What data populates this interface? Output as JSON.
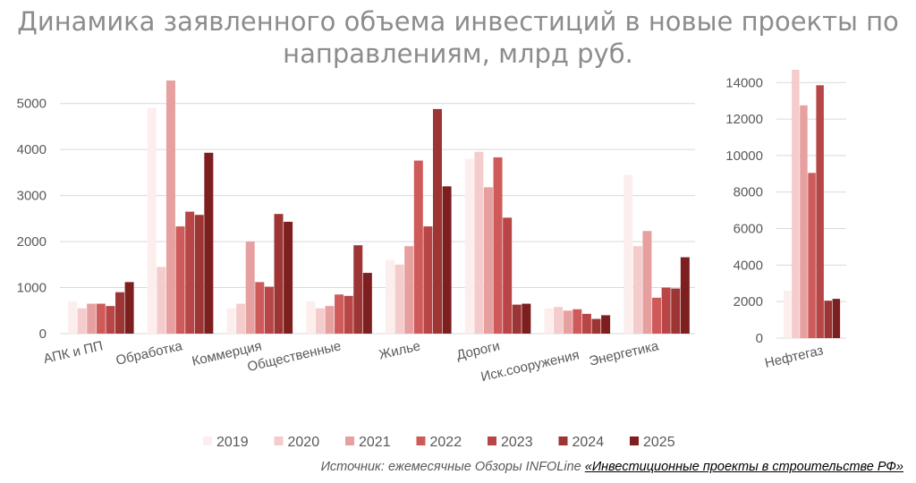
{
  "title_line1": "Динамика заявленного объема инвестиций в новые проекты по",
  "title_line2": "направлениям, млрд руб.",
  "source_prefix": "Источник: ежемесячные Обзоры INFOLine ",
  "source_link": "«Инвестиционные проекты в строительстве РФ»",
  "colors": [
    "#fdeeee",
    "#f4cccc",
    "#e6a0a0",
    "#cf5a5a",
    "#b84646",
    "#9e3535",
    "#7d1f1f"
  ],
  "chart_data": [
    {
      "type": "bar",
      "title": "Динамика заявленного объема инвестиций в новые проекты по направлениям, млрд руб.",
      "categories": [
        "АПК и ПП",
        "Обработка",
        "Коммерция",
        "Общественные",
        "Жилье",
        "Дороги",
        "Иск.сооружения",
        "Энергетика"
      ],
      "series": [
        {
          "name": "2019",
          "values": [
            700,
            4900,
            550,
            700,
            1600,
            3800,
            550,
            3450
          ]
        },
        {
          "name": "2020",
          "values": [
            550,
            1450,
            650,
            550,
            1500,
            3950,
            580,
            1900
          ]
        },
        {
          "name": "2021",
          "values": [
            650,
            5500,
            2000,
            600,
            1900,
            3180,
            500,
            2230
          ]
        },
        {
          "name": "2022",
          "values": [
            650,
            2330,
            1120,
            850,
            3760,
            3830,
            530,
            780
          ]
        },
        {
          "name": "2023",
          "values": [
            600,
            2650,
            1020,
            820,
            2330,
            2520,
            430,
            1000
          ]
        },
        {
          "name": "2024",
          "values": [
            900,
            2580,
            2600,
            1920,
            4880,
            630,
            320,
            980
          ]
        },
        {
          "name": "2025",
          "values": [
            1120,
            3930,
            2430,
            1320,
            3200,
            650,
            400,
            1660
          ]
        }
      ],
      "ylim": [
        0,
        5500
      ],
      "yticks": [
        0,
        1000,
        2000,
        3000,
        4000,
        5000
      ],
      "grid": true
    },
    {
      "type": "bar",
      "categories": [
        "Нефтегаз"
      ],
      "series": [
        {
          "name": "2019",
          "values": [
            2600
          ]
        },
        {
          "name": "2020",
          "values": [
            14700
          ]
        },
        {
          "name": "2021",
          "values": [
            12750
          ]
        },
        {
          "name": "2022",
          "values": [
            9050
          ]
        },
        {
          "name": "2023",
          "values": [
            13850
          ]
        },
        {
          "name": "2024",
          "values": [
            2050
          ]
        },
        {
          "name": "2025",
          "values": [
            2150
          ]
        }
      ],
      "ylim": [
        0,
        14700
      ],
      "yticks": [
        0,
        2000,
        4000,
        6000,
        8000,
        10000,
        12000,
        14000
      ],
      "grid": true
    }
  ],
  "legend": {
    "placement": "bottom",
    "entries": [
      "2019",
      "2020",
      "2021",
      "2022",
      "2023",
      "2024",
      "2025"
    ]
  }
}
